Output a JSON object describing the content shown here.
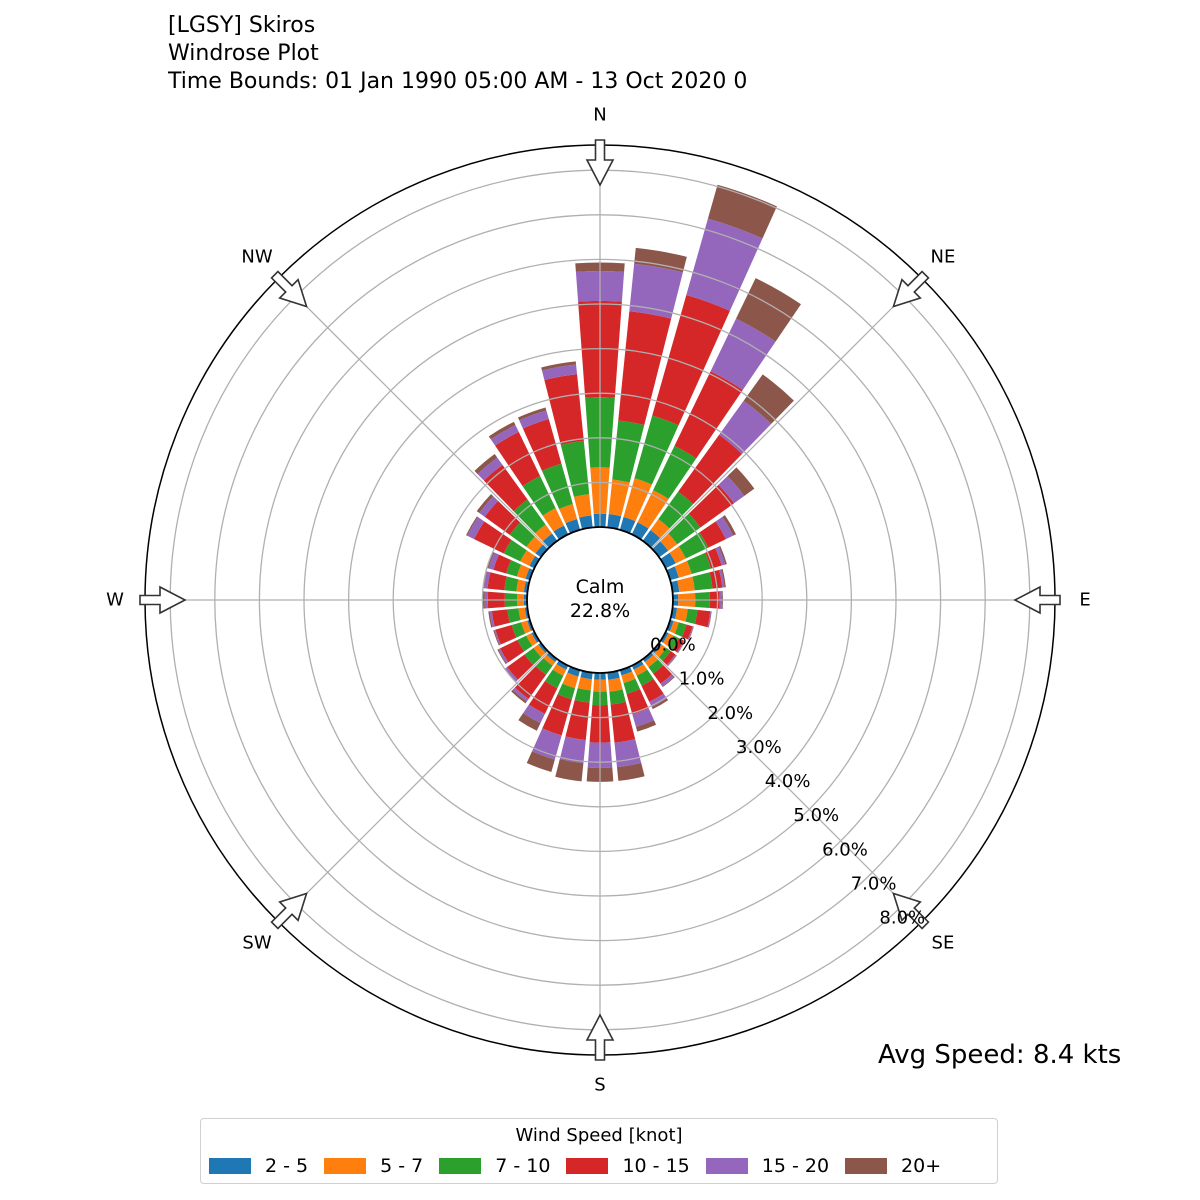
{
  "title": {
    "station": "[LGSY] Skiros",
    "plot_name": "Windrose Plot",
    "time_bounds": "Time Bounds: 01 Jan 1990 05:00 AM - 13 Oct 2020 0"
  },
  "avg_speed": "Avg Speed: 8.4 kts",
  "chart_data": {
    "type": "windrose",
    "calm_label": "Calm",
    "calm_value": "22.8%",
    "radial_unit": "%",
    "radial_ticks": [
      0,
      1,
      2,
      3,
      4,
      5,
      6,
      7,
      8
    ],
    "radial_tick_labels": [
      "0.0%",
      "1.0%",
      "2.0%",
      "3.0%",
      "4.0%",
      "5.0%",
      "6.0%",
      "7.0%",
      "8.0%"
    ],
    "radial_max": 8.5,
    "grid": true,
    "direction_labels": [
      {
        "label": "N",
        "bearing": 0
      },
      {
        "label": "NE",
        "bearing": 45
      },
      {
        "label": "E",
        "bearing": 90
      },
      {
        "label": "SE",
        "bearing": 135
      },
      {
        "label": "S",
        "bearing": 180
      },
      {
        "label": "SW",
        "bearing": 225
      },
      {
        "label": "W",
        "bearing": 270
      },
      {
        "label": "NW",
        "bearing": 315
      }
    ],
    "directions": [
      0,
      10,
      20,
      30,
      40,
      50,
      60,
      70,
      80,
      90,
      100,
      110,
      120,
      130,
      140,
      150,
      160,
      170,
      180,
      190,
      200,
      210,
      220,
      230,
      240,
      250,
      260,
      270,
      280,
      290,
      300,
      310,
      320,
      330,
      340,
      350
    ],
    "legend_title": "Wind Speed [knot]",
    "legend_placement": "bottom",
    "series": [
      {
        "name": "2 - 5",
        "color": "#1f77b4",
        "values": [
          0.3,
          0.3,
          0.3,
          0.3,
          0.3,
          0.25,
          0.25,
          0.2,
          0.15,
          0.12,
          0.1,
          0.08,
          0.07,
          0.07,
          0.08,
          0.1,
          0.12,
          0.16,
          0.15,
          0.15,
          0.15,
          0.1,
          0.08,
          0.07,
          0.07,
          0.06,
          0.06,
          0.07,
          0.08,
          0.1,
          0.12,
          0.15,
          0.2,
          0.22,
          0.25,
          0.27
        ]
      },
      {
        "name": "5 - 7",
        "color": "#ff7f0e",
        "values": [
          1.04,
          0.78,
          0.9,
          0.8,
          0.3,
          0.25,
          0.25,
          0.3,
          0.35,
          0.38,
          0.24,
          0.12,
          0.13,
          0.13,
          0.14,
          0.15,
          0.18,
          0.27,
          0.27,
          0.25,
          0.27,
          0.15,
          0.1,
          0.13,
          0.13,
          0.14,
          0.14,
          0.15,
          0.17,
          0.2,
          0.23,
          0.25,
          0.25,
          0.43,
          0.35,
          0.48
        ]
      },
      {
        "name": "7 - 10",
        "color": "#2ca02c",
        "values": [
          1.57,
          1.33,
          1.46,
          1.1,
          0.76,
          0.64,
          0.56,
          0.45,
          0.4,
          0.33,
          0.22,
          0.18,
          0.13,
          0.12,
          0.18,
          0.25,
          0.25,
          0.29,
          0.3,
          0.28,
          0.26,
          0.31,
          0.25,
          0.25,
          0.22,
          0.22,
          0.25,
          0.28,
          0.27,
          0.25,
          0.41,
          0.46,
          0.69,
          0.8,
          0.94,
          1.2
        ]
      },
      {
        "name": "10 - 15",
        "color": "#d62728",
        "values": [
          2.16,
          2.46,
          2.81,
          1.86,
          1.57,
          0.93,
          0.44,
          0.25,
          0.22,
          0.22,
          0.29,
          0.14,
          0.12,
          0.13,
          0.28,
          0.4,
          0.48,
          0.86,
          0.84,
          0.84,
          0.84,
          0.64,
          0.67,
          0.48,
          0.43,
          0.38,
          0.35,
          0.38,
          0.38,
          0.3,
          0.74,
          0.69,
          0.96,
          1.1,
          1.04,
          1.5
        ]
      },
      {
        "name": "15 - 20",
        "color": "#9467bd",
        "values": [
          0.67,
          1.07,
          1.78,
          1.31,
          0.94,
          0.28,
          0.18,
          0.08,
          0.05,
          0.05,
          0.02,
          0.02,
          0.02,
          0.03,
          0.07,
          0.13,
          0.29,
          0.55,
          0.57,
          0.52,
          0.56,
          0.23,
          0.07,
          0.05,
          0.05,
          0.03,
          0.05,
          0.07,
          0.08,
          0.11,
          0.17,
          0.15,
          0.2,
          0.17,
          0.2,
          0.22
        ]
      },
      {
        "name": "20+",
        "color": "#8c564b",
        "values": [
          0.19,
          0.36,
          0.79,
          1.01,
          0.73,
          0.28,
          0.07,
          0.04,
          0.03,
          0.02,
          0.01,
          0.01,
          0.01,
          0.01,
          0.02,
          0.05,
          0.11,
          0.31,
          0.31,
          0.41,
          0.29,
          0.19,
          0.05,
          0.03,
          0.02,
          0.02,
          0.03,
          0.04,
          0.03,
          0.03,
          0.03,
          0.07,
          0.1,
          0.08,
          0.07,
          0.07
        ]
      }
    ]
  }
}
